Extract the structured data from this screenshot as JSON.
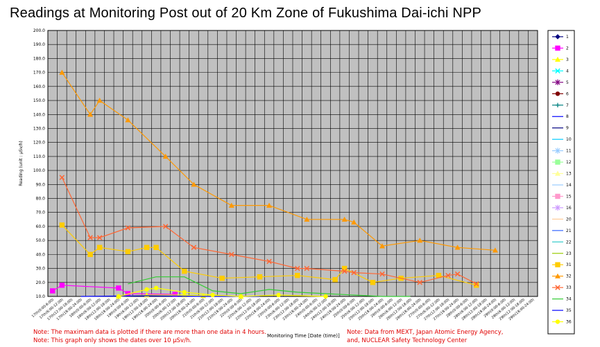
{
  "chart_data": {
    "type": "line",
    "title": "Readings at Monitoring Post out of 20 Km Zone of Fukushima Dai-ichi NPP",
    "xlabel": "Monitoring Time [Date (time)]",
    "ylabel": "Reading (unit : μSv/h)",
    "ylim": [
      10,
      200
    ],
    "yticks": [
      "10.0",
      "20.0",
      "30.0",
      "40.0",
      "50.0",
      "60.0",
      "70.0",
      "80.0",
      "90.0",
      "100.0",
      "110.0",
      "120.0",
      "130.0",
      "140.0",
      "150.0",
      "160.0",
      "170.0",
      "180.0",
      "190.0",
      "200.0"
    ],
    "grid": true,
    "legend": "right",
    "categories": [
      "17th(0:00-6:00)",
      "17th(6:00-12:00)",
      "17th(12:00-18:00)",
      "17th(18:00-24:00)",
      "18th(0:00-6:00)",
      "18th(6:00-12:00)",
      "18th(12:00-18:00)",
      "18th(18:00-24:00)",
      "19th(0:00-6:00)",
      "19th(6:00-12:00)",
      "19th(12:00-18:00)",
      "19th(18:00-24:00)",
      "20th(0:00-6:00)",
      "20th(6:00-12:00)",
      "20th(12:00-18:00)",
      "20th(18:00-24:00)",
      "21th(0:00-6:00)",
      "21th(6:00-12:00)",
      "21th(12:00-18:00)",
      "21th(18:00-24:00)",
      "22th(0:00-6:00)",
      "22th(6:00-12:00)",
      "22th(12:00-18:00)",
      "22th(18:00-24:00)",
      "23th(0:00-6:00)",
      "23th(6:00-12:00)",
      "23th(12:00-18:00)",
      "23th(18:00-24:00)",
      "24th(0:00-6:00)",
      "24th(6:00-12:00)",
      "24th(12:00-18:00)",
      "24th(18:00-24:00)",
      "25th(0:00-6:00)",
      "25th(6:00-12:00)",
      "25th(12:00-18:00)",
      "25th(18:00-24:00)",
      "26th(0:00-6:00)",
      "26th(6:00-12:00)",
      "26th(12:00-18:00)",
      "26th(18:00-24:00)",
      "27th(0:00-6:00)",
      "27th(6:00-12:00)",
      "27th(12:00-18:00)",
      "27th(18:00-24:00)",
      "28th(0:00-6:00)",
      "28th(6:00-12:00)",
      "28th(12:00-18:00)",
      "28th(18:00-24:00)",
      "29th(0:00-6:00)",
      "29th(6:00-12:00)",
      "29th(12:00-18:00)",
      "29th(18:00-24:00)"
    ],
    "series": [
      {
        "name": "1",
        "color": "#000080",
        "marker": "diamond",
        "points": []
      },
      {
        "name": "2",
        "color": "#ff00ff",
        "marker": "square",
        "points": [
          [
            0,
            14
          ],
          [
            1,
            18
          ],
          [
            7,
            16
          ],
          [
            8,
            12
          ],
          [
            13,
            11.5
          ]
        ]
      },
      {
        "name": "3",
        "color": "#ffff00",
        "marker": "triangle",
        "points": [
          [
            7,
            10
          ],
          [
            10,
            11
          ],
          [
            14,
            11
          ],
          [
            16,
            10.5
          ],
          [
            20,
            10
          ]
        ]
      },
      {
        "name": "4",
        "color": "#00ffff",
        "marker": "x",
        "points": []
      },
      {
        "name": "5",
        "color": "#800080",
        "marker": "star",
        "points": []
      },
      {
        "name": "6",
        "color": "#800000",
        "marker": "circle",
        "points": []
      },
      {
        "name": "7",
        "color": "#008080",
        "marker": "plus",
        "points": []
      },
      {
        "name": "8",
        "color": "#0000ff",
        "marker": "none",
        "points": []
      },
      {
        "name": "9",
        "color": "#000080",
        "marker": "none",
        "points": []
      },
      {
        "name": "10",
        "color": "#00ccff",
        "marker": "none",
        "points": []
      },
      {
        "name": "11",
        "color": "#99ccff",
        "marker": "star",
        "points": []
      },
      {
        "name": "12",
        "color": "#99ff99",
        "marker": "square",
        "points": []
      },
      {
        "name": "13",
        "color": "#ffff99",
        "marker": "triangle",
        "points": []
      },
      {
        "name": "14",
        "color": "#99ccff",
        "marker": "none",
        "points": []
      },
      {
        "name": "15",
        "color": "#ff99cc",
        "marker": "square",
        "points": []
      },
      {
        "name": "16",
        "color": "#cc99ff",
        "marker": "star",
        "points": []
      },
      {
        "name": "20",
        "color": "#ffcc99",
        "marker": "none",
        "points": []
      },
      {
        "name": "21",
        "color": "#3366ff",
        "marker": "none",
        "points": []
      },
      {
        "name": "22",
        "color": "#33cccc",
        "marker": "none",
        "points": []
      },
      {
        "name": "23",
        "color": "#99cc00",
        "marker": "none",
        "points": []
      },
      {
        "name": "31",
        "color": "#ffcc00",
        "marker": "square",
        "points": [
          [
            1,
            61
          ],
          [
            4,
            40
          ],
          [
            5,
            45
          ],
          [
            8,
            42
          ],
          [
            10,
            45
          ],
          [
            11,
            45
          ],
          [
            14,
            28
          ],
          [
            18,
            23
          ],
          [
            22,
            24
          ],
          [
            26,
            25
          ],
          [
            30,
            22
          ],
          [
            31,
            30
          ],
          [
            34,
            20
          ],
          [
            37,
            23
          ],
          [
            41,
            25
          ],
          [
            45,
            18
          ]
        ]
      },
      {
        "name": "32",
        "color": "#ff9900",
        "marker": "triangle",
        "points": [
          [
            1,
            170
          ],
          [
            4,
            140
          ],
          [
            5,
            150
          ],
          [
            8,
            136
          ],
          [
            12,
            110
          ],
          [
            15,
            90
          ],
          [
            19,
            75
          ],
          [
            23,
            75
          ],
          [
            27,
            65
          ],
          [
            31,
            65
          ],
          [
            32,
            63
          ],
          [
            35,
            46
          ],
          [
            39,
            50
          ],
          [
            43,
            45
          ],
          [
            47,
            43
          ]
        ]
      },
      {
        "name": "33",
        "color": "#ff6633",
        "marker": "x",
        "points": [
          [
            1,
            95
          ],
          [
            4,
            52
          ],
          [
            5,
            52
          ],
          [
            8,
            59
          ],
          [
            12,
            60
          ],
          [
            15,
            45
          ],
          [
            19,
            40
          ],
          [
            23,
            35
          ],
          [
            26,
            30
          ],
          [
            27,
            30
          ],
          [
            31,
            28
          ],
          [
            32,
            27
          ],
          [
            35,
            26
          ],
          [
            39,
            20
          ],
          [
            42,
            25
          ],
          [
            43,
            26
          ],
          [
            45,
            19
          ]
        ]
      },
      {
        "name": "34",
        "color": "#33cc33",
        "marker": "none",
        "points": [
          [
            8,
            19
          ],
          [
            11,
            24
          ],
          [
            14,
            24
          ],
          [
            17,
            14
          ],
          [
            20,
            12
          ],
          [
            23,
            15
          ],
          [
            26,
            13
          ],
          [
            29,
            12
          ],
          [
            32,
            11
          ],
          [
            35,
            10
          ],
          [
            38,
            10
          ]
        ]
      },
      {
        "name": "35",
        "color": "#0000ff",
        "marker": "none",
        "points": [
          [
            3,
            10
          ],
          [
            10,
            10.5
          ],
          [
            16,
            10
          ],
          [
            22,
            10
          ]
        ]
      },
      {
        "name": "36",
        "color": "#ffff00",
        "marker": "circle",
        "points": [
          [
            7,
            10
          ],
          [
            10,
            15
          ],
          [
            11,
            16
          ],
          [
            14,
            13
          ],
          [
            17,
            11
          ],
          [
            20,
            10
          ],
          [
            24,
            11
          ],
          [
            29,
            10
          ]
        ]
      }
    ]
  },
  "notes": {
    "note1": "Note: The maximam data is plotted if there are more than one data in 4 hours.",
    "note2": "Note: This graph only shows the dates over 10 μSv/h.",
    "note3": "Note: Data from MEXT, Japan Atomic Energy Agency,",
    "note4": "and, NUCLEAR Safety Technology Center"
  }
}
